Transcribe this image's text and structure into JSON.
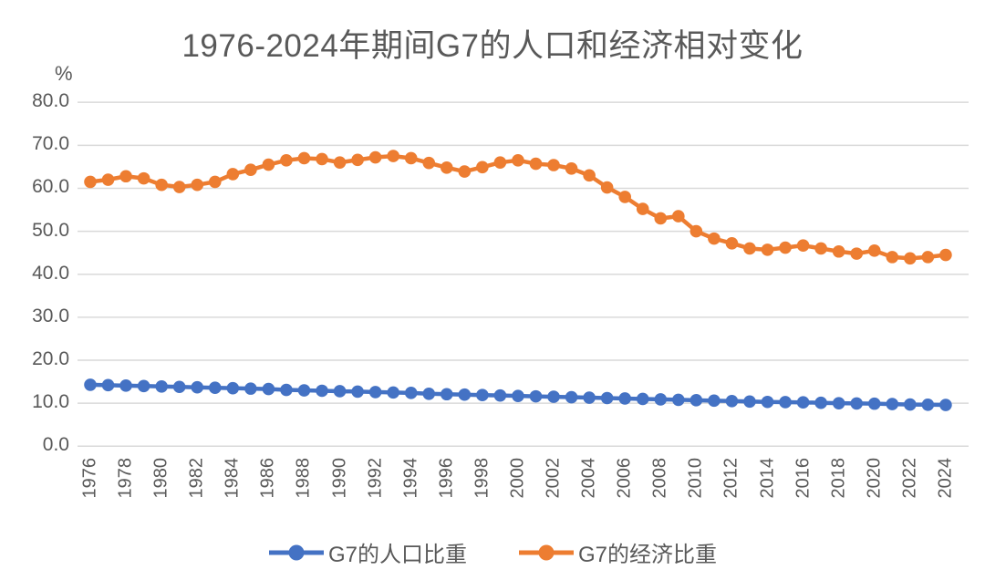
{
  "chart": {
    "title": "1976-2024年期间G7的人口和经济相对变化",
    "y_unit": "%"
  },
  "colors": {
    "population": "#4472C4",
    "economy": "#ED7D31",
    "grid": "#D9D9D9",
    "text": "#595959",
    "background": "#FFFFFF"
  },
  "legend": {
    "position": "bottom"
  },
  "chart_data": {
    "type": "line",
    "title": "1976-2024年期间G7的人口和经济相对变化",
    "xlabel": "",
    "ylabel": "%",
    "ylim": [
      0,
      80
    ],
    "ytick_step": 10,
    "ytick_format": "one-decimal",
    "grid": "horizontal",
    "legend_position": "bottom",
    "x_tick_interval": 2,
    "x": [
      1976,
      1977,
      1978,
      1979,
      1980,
      1981,
      1982,
      1983,
      1984,
      1985,
      1986,
      1987,
      1988,
      1989,
      1990,
      1991,
      1992,
      1993,
      1994,
      1995,
      1996,
      1997,
      1998,
      1999,
      2000,
      2001,
      2002,
      2003,
      2004,
      2005,
      2006,
      2007,
      2008,
      2009,
      2010,
      2011,
      2012,
      2013,
      2014,
      2015,
      2016,
      2017,
      2018,
      2019,
      2020,
      2021,
      2022,
      2023,
      2024
    ],
    "series": [
      {
        "name": "G7的人口比重",
        "color": "#4472C4",
        "marker": "circle",
        "values": [
          14.3,
          14.2,
          14.1,
          14.0,
          13.9,
          13.8,
          13.7,
          13.6,
          13.5,
          13.4,
          13.3,
          13.1,
          13.0,
          12.9,
          12.8,
          12.7,
          12.6,
          12.5,
          12.4,
          12.2,
          12.1,
          12.0,
          11.9,
          11.8,
          11.7,
          11.6,
          11.5,
          11.4,
          11.3,
          11.2,
          11.1,
          11.0,
          10.9,
          10.8,
          10.7,
          10.6,
          10.5,
          10.4,
          10.3,
          10.25,
          10.2,
          10.1,
          10.0,
          9.95,
          9.9,
          9.8,
          9.7,
          9.65,
          9.6
        ]
      },
      {
        "name": "G7的经济比重",
        "color": "#ED7D31",
        "marker": "circle",
        "values": [
          61.5,
          62.0,
          62.8,
          62.3,
          60.8,
          60.3,
          60.8,
          61.5,
          63.3,
          64.3,
          65.5,
          66.5,
          67.0,
          66.8,
          66.0,
          66.6,
          67.2,
          67.5,
          67.0,
          65.9,
          64.8,
          63.9,
          64.9,
          66.0,
          66.5,
          65.7,
          65.4,
          64.6,
          63.0,
          60.2,
          58.0,
          55.2,
          53.0,
          53.5,
          50.0,
          48.3,
          47.2,
          46.0,
          45.7,
          46.2,
          46.7,
          46.0,
          45.3,
          44.8,
          45.5,
          44.0,
          43.7,
          44.0,
          44.5
        ]
      }
    ]
  }
}
